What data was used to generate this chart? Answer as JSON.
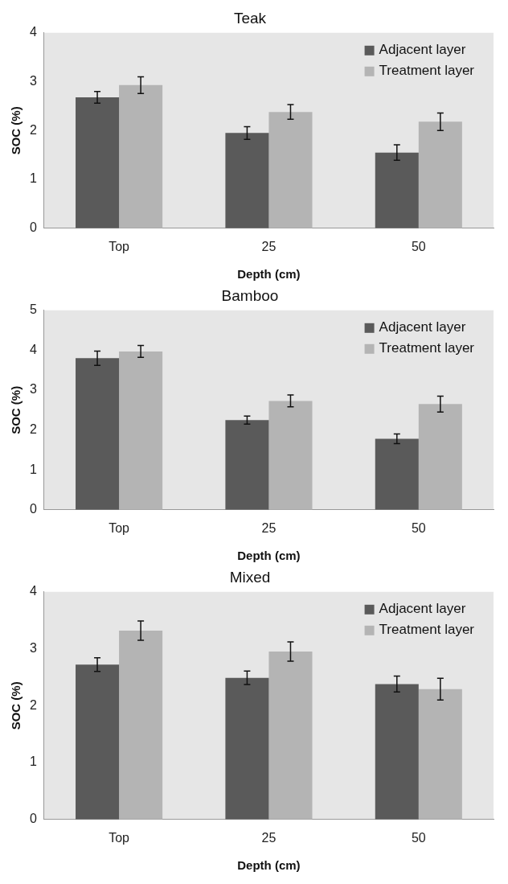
{
  "chart_data": [
    {
      "type": "bar",
      "title": "Teak",
      "xlabel": "Depth (cm)",
      "ylabel": "SOC (%)",
      "categories": [
        "Top",
        "25",
        "50"
      ],
      "ylim": [
        0,
        4
      ],
      "yticks": [
        0,
        1,
        2,
        3,
        4
      ],
      "grid": false,
      "legend": "top right",
      "series": [
        {
          "name": "Adjacent layer",
          "color": "#5a5a5a",
          "values": [
            2.68,
            1.95,
            1.55
          ],
          "errors": [
            0.12,
            0.13,
            0.16
          ]
        },
        {
          "name": "Treatment layer",
          "color": "#b4b4b4",
          "values": [
            2.93,
            2.38,
            2.18
          ],
          "errors": [
            0.17,
            0.15,
            0.18
          ]
        }
      ]
    },
    {
      "type": "bar",
      "title": "Bamboo",
      "xlabel": "Depth (cm)",
      "ylabel": "SOC (%)",
      "categories": [
        "Top",
        "25",
        "50"
      ],
      "ylim": [
        0,
        5
      ],
      "yticks": [
        0,
        1,
        2,
        3,
        4,
        5
      ],
      "grid": false,
      "legend": "top right",
      "series": [
        {
          "name": "Adjacent layer",
          "color": "#5a5a5a",
          "values": [
            3.8,
            2.25,
            1.78
          ],
          "errors": [
            0.18,
            0.1,
            0.12
          ]
        },
        {
          "name": "Treatment layer",
          "color": "#b4b4b4",
          "values": [
            3.97,
            2.73,
            2.65
          ],
          "errors": [
            0.15,
            0.15,
            0.2
          ]
        }
      ]
    },
    {
      "type": "bar",
      "title": "Mixed",
      "xlabel": "Depth (cm)",
      "ylabel": "SOC (%)",
      "categories": [
        "Top",
        "25",
        "50"
      ],
      "ylim": [
        0,
        4
      ],
      "yticks": [
        0,
        1,
        2,
        3,
        4
      ],
      "grid": false,
      "legend": "top right",
      "series": [
        {
          "name": "Adjacent layer",
          "color": "#5a5a5a",
          "values": [
            2.72,
            2.49,
            2.38
          ],
          "errors": [
            0.12,
            0.12,
            0.14
          ]
        },
        {
          "name": "Treatment layer",
          "color": "#b4b4b4",
          "values": [
            3.32,
            2.95,
            2.29
          ],
          "errors": [
            0.17,
            0.17,
            0.19
          ]
        }
      ]
    }
  ]
}
